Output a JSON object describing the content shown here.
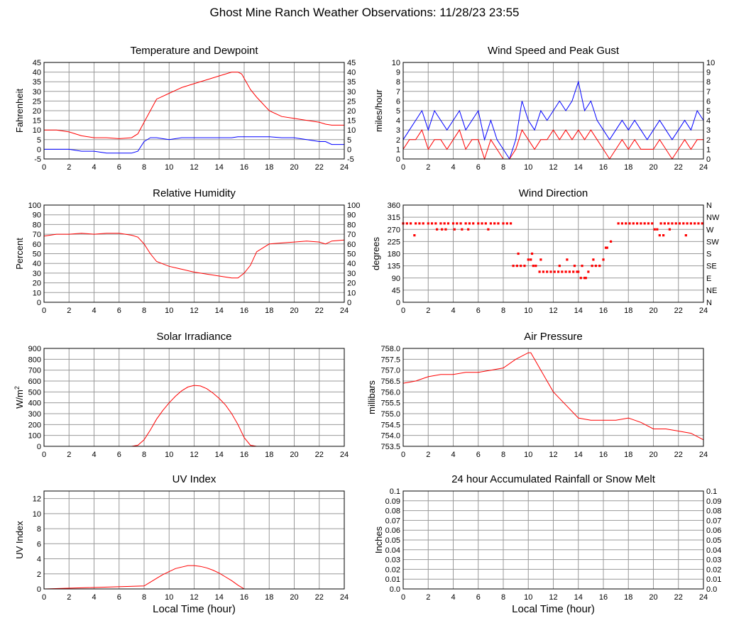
{
  "title": "Ghost Mine Ranch Weather Observations: 11/28/23 23:55",
  "colors": {
    "temperature": "#ff0000",
    "dewpoint": "#0000ff",
    "grid": "#999999",
    "frame": "#000000"
  },
  "x_axis": {
    "label": "Local Time (hour)",
    "range": [
      0,
      24
    ],
    "ticks": [
      "0",
      "2",
      "4",
      "6",
      "8",
      "10",
      "12",
      "14",
      "16",
      "18",
      "20",
      "22",
      "24"
    ]
  },
  "chart_data": [
    {
      "id": "temp",
      "type": "line",
      "title": "Temperature and Dewpoint",
      "ylabel": "Fahrenheit",
      "ylim": [
        -5,
        45
      ],
      "yticks": [
        "-5",
        "0",
        "5",
        "10",
        "15",
        "20",
        "25",
        "30",
        "35",
        "40",
        "45"
      ],
      "right_ticks": [
        "-5",
        "0",
        "5",
        "10",
        "15",
        "20",
        "25",
        "30",
        "35",
        "40",
        "45"
      ],
      "x": [
        0,
        1,
        2,
        3,
        4,
        5,
        6,
        7,
        7.5,
        8,
        8.5,
        9,
        10,
        11,
        12,
        13,
        14,
        15,
        15.5,
        15.8,
        16.5,
        17,
        18,
        19,
        20,
        21,
        22,
        22.5,
        23,
        24
      ],
      "series": [
        {
          "color": "#ff0000",
          "values": [
            10,
            10,
            9,
            7,
            6,
            6,
            5.5,
            6,
            8,
            14,
            20,
            26,
            29,
            32,
            34,
            36,
            38,
            40,
            40,
            39,
            31,
            27,
            20,
            17,
            16,
            15,
            14,
            13,
            12.5,
            12.5
          ]
        },
        {
          "color": "#0000ff",
          "values": [
            0,
            0,
            0,
            -1,
            -1,
            -2,
            -2,
            -2,
            -1,
            4,
            6,
            6,
            5,
            6,
            6,
            6,
            6,
            6,
            6.5,
            6.5,
            6.5,
            6.5,
            6.5,
            6,
            6,
            5,
            4,
            4,
            2.5,
            2.5
          ]
        }
      ]
    },
    {
      "id": "wind",
      "type": "line",
      "title": "Wind Speed and Peak Gust",
      "ylabel": "miles/hour",
      "ylim": [
        0,
        10
      ],
      "yticks": [
        "0",
        "1",
        "2",
        "3",
        "4",
        "5",
        "6",
        "7",
        "8",
        "9",
        "10"
      ],
      "right_ticks": [
        "0",
        "1",
        "2",
        "3",
        "4",
        "5",
        "6",
        "7",
        "8",
        "9",
        "10"
      ],
      "x": [
        0,
        0.5,
        1,
        1.5,
        2,
        2.5,
        3,
        3.5,
        4,
        4.5,
        5,
        5.5,
        6,
        6.5,
        7,
        7.5,
        8,
        8.5,
        9,
        9.5,
        10,
        10.5,
        11,
        11.5,
        12,
        12.5,
        13,
        13.5,
        14,
        14.5,
        15,
        15.5,
        16,
        16.5,
        17,
        17.5,
        18,
        18.5,
        19,
        19.5,
        20,
        20.5,
        21,
        21.5,
        22,
        22.5,
        23,
        23.5,
        24
      ],
      "series": [
        {
          "color": "#0000ff",
          "values": [
            2,
            3,
            4,
            5,
            3,
            5,
            4,
            3,
            4,
            5,
            3,
            4,
            5,
            2,
            4,
            2,
            1,
            0,
            2,
            6,
            4,
            3,
            5,
            4,
            5,
            6,
            5,
            6,
            8,
            5,
            6,
            4,
            3,
            2,
            3,
            4,
            3,
            4,
            3,
            2,
            3,
            4,
            3,
            2,
            3,
            4,
            3,
            5,
            4
          ]
        },
        {
          "color": "#ff0000",
          "values": [
            1,
            2,
            2,
            3,
            1,
            2,
            2,
            1,
            2,
            3,
            1,
            2,
            2,
            0,
            2,
            1,
            0,
            0,
            1,
            3,
            2,
            1,
            2,
            2,
            3,
            2,
            3,
            2,
            3,
            2,
            3,
            2,
            1,
            0,
            1,
            2,
            1,
            2,
            1,
            1,
            1,
            2,
            1,
            0,
            1,
            2,
            1,
            2,
            2
          ]
        }
      ]
    },
    {
      "id": "rh",
      "type": "line",
      "title": "Relative Humidity",
      "ylabel": "Percent",
      "ylim": [
        0,
        100
      ],
      "yticks": [
        "0",
        "10",
        "20",
        "30",
        "40",
        "50",
        "60",
        "70",
        "80",
        "90",
        "100"
      ],
      "right_ticks": [
        "0",
        "10",
        "20",
        "30",
        "40",
        "50",
        "60",
        "70",
        "80",
        "90",
        "100"
      ],
      "x": [
        0,
        1,
        2,
        3,
        4,
        5,
        6,
        7,
        7.5,
        8,
        8.5,
        9,
        10,
        11,
        12,
        13,
        14,
        15,
        15.5,
        16,
        16.5,
        17,
        18,
        19,
        20,
        21,
        22,
        22.5,
        23,
        24
      ],
      "series": [
        {
          "color": "#ff0000",
          "values": [
            68,
            70,
            70,
            71,
            70,
            71,
            71,
            69,
            67,
            60,
            50,
            42,
            37,
            34,
            31,
            29,
            27,
            25,
            25,
            30,
            38,
            52,
            60,
            61,
            62,
            63,
            62,
            60,
            63,
            64
          ]
        }
      ]
    },
    {
      "id": "wdir",
      "type": "scatter",
      "title": "Wind Direction",
      "ylabel": "degrees",
      "ylim": [
        0,
        360
      ],
      "yticks": [
        "0",
        "45",
        "90",
        "135",
        "180",
        "225",
        "270",
        "315",
        "360"
      ],
      "right_ticks": [
        "N",
        "NE",
        "E",
        "SE",
        "S",
        "SW",
        "W",
        "NW",
        "N"
      ],
      "series": [
        {
          "color": "#ff0000",
          "x": [
            0,
            0.3,
            0.6,
            1,
            1.3,
            1.6,
            2,
            2.3,
            2.6,
            3,
            3.3,
            3.6,
            4,
            4.3,
            4.6,
            5,
            5.3,
            5.6,
            6,
            6.3,
            6.6,
            7,
            7.3,
            7.6,
            8,
            8.3,
            8.6,
            0.9,
            2.7,
            3.1,
            3.4,
            4.1,
            4.7,
            5.2,
            6.8,
            8.8,
            9.1,
            9.4,
            9.7,
            10,
            10.2,
            10.4,
            10.6,
            10.9,
            11.2,
            11.5,
            11.8,
            12.1,
            12.4,
            12.7,
            13,
            13.3,
            13.6,
            13.9,
            14.2,
            14.5,
            14.8,
            15.1,
            15.4,
            15.7,
            16,
            16.3,
            16.6,
            9.2,
            10.3,
            11,
            12.5,
            13.1,
            13.7,
            14,
            14.3,
            14.6,
            15.2,
            16.2,
            17.2,
            17.5,
            17.8,
            18.1,
            18.4,
            18.7,
            19,
            19.3,
            19.6,
            19.9,
            20.1,
            20.3,
            20.6,
            20.9,
            21.2,
            21.5,
            21.8,
            22.1,
            22.4,
            22.7,
            23,
            23.3,
            23.6,
            23.9,
            20.5,
            20.8,
            21.3,
            22.6
          ],
          "values": [
            292,
            292,
            292,
            292,
            292,
            292,
            292,
            292,
            292,
            292,
            292,
            292,
            292,
            292,
            292,
            292,
            292,
            292,
            292,
            292,
            292,
            292,
            292,
            292,
            292,
            292,
            292,
            248,
            270,
            270,
            270,
            270,
            270,
            270,
            270,
            135,
            135,
            135,
            135,
            158,
            158,
            135,
            135,
            113,
            113,
            113,
            113,
            113,
            113,
            113,
            113,
            113,
            113,
            113,
            90,
            90,
            113,
            135,
            135,
            135,
            158,
            202,
            225,
            180,
            180,
            158,
            135,
            158,
            135,
            113,
            135,
            90,
            158,
            202,
            292,
            292,
            292,
            292,
            292,
            292,
            292,
            292,
            292,
            292,
            270,
            270,
            292,
            292,
            292,
            292,
            292,
            292,
            292,
            292,
            292,
            292,
            292,
            292,
            248,
            248,
            270,
            248
          ]
        }
      ]
    },
    {
      "id": "solar",
      "type": "line",
      "title": "Solar Irradiance",
      "ylabel": "W/m",
      "ylabel_sup": "2",
      "ylim": [
        0,
        900
      ],
      "yticks": [
        "0",
        "100",
        "200",
        "300",
        "400",
        "500",
        "600",
        "700",
        "800",
        "900"
      ],
      "right_ticks": [],
      "x": [
        0,
        7,
        7.5,
        8,
        8.5,
        9,
        9.5,
        10,
        10.5,
        11,
        11.5,
        12,
        12.5,
        13,
        13.5,
        14,
        14.5,
        15,
        15.5,
        16,
        16.5,
        17,
        24
      ],
      "series": [
        {
          "color": "#ff0000",
          "values": [
            0,
            0,
            10,
            60,
            150,
            250,
            330,
            400,
            460,
            510,
            545,
            560,
            555,
            530,
            490,
            440,
            380,
            300,
            200,
            80,
            10,
            0,
            0
          ]
        }
      ]
    },
    {
      "id": "pressure",
      "type": "line",
      "title": "Air Pressure",
      "ylabel": "millibars",
      "ylim": [
        753.5,
        758.0
      ],
      "yticks": [
        "753.5",
        "754.0",
        "754.5",
        "755.0",
        "755.5",
        "756.0",
        "756.5",
        "757.0",
        "757.5",
        "758.0"
      ],
      "right_ticks": [],
      "x": [
        0,
        1,
        2,
        3,
        4,
        5,
        6,
        7,
        8,
        9,
        10,
        10.2,
        11,
        12,
        13,
        14,
        15,
        16,
        17,
        18,
        19,
        20,
        21,
        22,
        23,
        24
      ],
      "series": [
        {
          "color": "#ff0000",
          "values": [
            756.4,
            756.5,
            756.7,
            756.8,
            756.8,
            756.9,
            756.9,
            757.0,
            757.1,
            757.5,
            757.8,
            757.8,
            757.0,
            756.0,
            755.4,
            754.8,
            754.7,
            754.7,
            754.7,
            754.8,
            754.6,
            754.3,
            754.3,
            754.2,
            754.1,
            753.8
          ]
        }
      ]
    },
    {
      "id": "uv",
      "type": "line",
      "title": "UV Index",
      "ylabel": "UV Index",
      "ylim": [
        0,
        13
      ],
      "yticks": [
        "0",
        "2",
        "4",
        "6",
        "8",
        "10",
        "12"
      ],
      "ytick_values": [
        0,
        2,
        4,
        6,
        8,
        10,
        12
      ],
      "right_ticks": [],
      "x": [
        0,
        8,
        8.5,
        9,
        9.5,
        10,
        10.5,
        11,
        11.5,
        12,
        12.5,
        13,
        13.5,
        14,
        14.5,
        15,
        15.5,
        16,
        24
      ],
      "series": [
        {
          "color": "#ff0000",
          "values": [
            0,
            0.4,
            0.9,
            1.4,
            1.9,
            2.3,
            2.7,
            2.9,
            3.1,
            3.1,
            3.0,
            2.8,
            2.5,
            2.1,
            1.6,
            1.1,
            0.5,
            0,
            0
          ]
        }
      ]
    },
    {
      "id": "rain",
      "type": "line",
      "title": "24 hour Accumulated Rainfall or Snow Melt",
      "ylabel": "Inches",
      "ylim": [
        0,
        0.1
      ],
      "yticks": [
        "0.0",
        "0.01",
        "0.02",
        "0.03",
        "0.04",
        "0.05",
        "0.06",
        "0.07",
        "0.08",
        "0.09",
        "0.1"
      ],
      "right_ticks": [
        "0.0",
        "0.01",
        "0.02",
        "0.03",
        "0.04",
        "0.05",
        "0.06",
        "0.07",
        "0.08",
        "0.09",
        "0.1"
      ],
      "x": [
        0,
        24
      ],
      "series": [
        {
          "color": "#ff0000",
          "values": [
            0,
            0
          ]
        }
      ]
    }
  ]
}
